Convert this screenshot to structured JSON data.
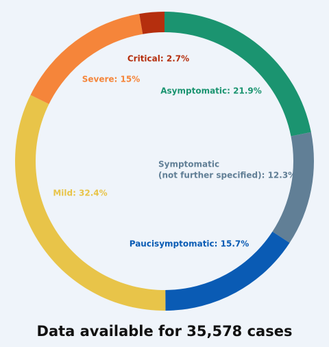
{
  "chart_data": {
    "type": "donut",
    "values": [
      21.9,
      12.3,
      15.7,
      32.4,
      15,
      2.7
    ],
    "value_labels": [
      "Asymptomatic: 21.9%",
      [
        "Symptomatic",
        "(not further specified): 12.3%"
      ],
      "Paucisymptomatic: 15.7%",
      "Mild: 32.4%",
      "Severe: 15%",
      "Critical: 2.7%"
    ],
    "colors": [
      "#1b9470",
      "#617f96",
      "#0a5bb4",
      "#e8c449",
      "#f5853a",
      "#b52f0e"
    ],
    "caption": "Data available for 35,578 cases"
  }
}
